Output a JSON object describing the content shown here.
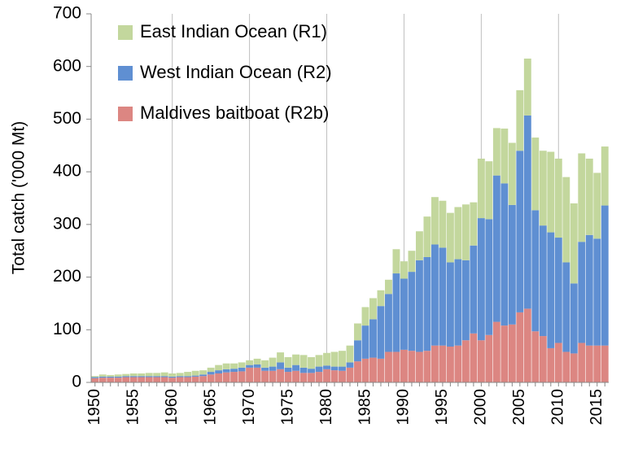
{
  "chart_data": {
    "type": "bar",
    "stacked": true,
    "ylabel": "Total catch ('000 Mt)",
    "categories": [
      "1950",
      null,
      null,
      null,
      null,
      "1955",
      null,
      null,
      null,
      null,
      "1960",
      null,
      null,
      null,
      null,
      "1965",
      null,
      null,
      null,
      null,
      "1970",
      null,
      null,
      null,
      null,
      "1975",
      null,
      null,
      null,
      null,
      "1980",
      null,
      null,
      null,
      null,
      "1985",
      null,
      null,
      null,
      null,
      "1990",
      null,
      null,
      null,
      null,
      "1995",
      null,
      null,
      null,
      null,
      "2000",
      null,
      null,
      null,
      null,
      "2005",
      null,
      null,
      null,
      null,
      "2010",
      null,
      null,
      null,
      null,
      "2015",
      null
    ],
    "series": [
      {
        "name": "Maldives baitboat (R2b)",
        "color": "#dc8682",
        "values": [
          8,
          9,
          9,
          9,
          10,
          10,
          10,
          10,
          10,
          10,
          9,
          10,
          10,
          11,
          12,
          15,
          17,
          19,
          20,
          21,
          28,
          28,
          22,
          22,
          25,
          20,
          22,
          18,
          18,
          20,
          25,
          23,
          22,
          28,
          40,
          45,
          47,
          45,
          58,
          58,
          62,
          60,
          58,
          60,
          70,
          70,
          68,
          70,
          80,
          93,
          80,
          90,
          115,
          108,
          110,
          133,
          140,
          97,
          88,
          65,
          75,
          58,
          55,
          75,
          70,
          70,
          70
        ]
      },
      {
        "name": "West Indian Ocean (R2)",
        "color": "#5f8fd2",
        "values": [
          2,
          2,
          2,
          2,
          2,
          2,
          2,
          2,
          2,
          2,
          2,
          2,
          2,
          2,
          3,
          5,
          6,
          6,
          6,
          7,
          5,
          6,
          6,
          8,
          13,
          8,
          11,
          10,
          8,
          10,
          7,
          7,
          8,
          10,
          40,
          63,
          73,
          100,
          110,
          149,
          135,
          150,
          174,
          178,
          192,
          186,
          160,
          164,
          152,
          167,
          232,
          220,
          278,
          270,
          227,
          307,
          367,
          230,
          210,
          220,
          200,
          170,
          133,
          192,
          210,
          203,
          266
        ]
      },
      {
        "name": "East Indian Ocean (R1)",
        "color": "#c3d79d",
        "values": [
          2,
          4,
          3,
          4,
          4,
          5,
          5,
          6,
          6,
          7,
          6,
          6,
          8,
          9,
          8,
          8,
          10,
          11,
          10,
          10,
          9,
          11,
          14,
          17,
          19,
          20,
          20,
          24,
          22,
          22,
          24,
          28,
          30,
          32,
          32,
          35,
          40,
          30,
          27,
          46,
          33,
          40,
          55,
          77,
          90,
          89,
          94,
          99,
          106,
          82,
          113,
          110,
          90,
          104,
          118,
          115,
          108,
          138,
          142,
          153,
          150,
          162,
          152,
          168,
          145,
          125,
          112
        ]
      }
    ],
    "ylim": [
      0,
      700
    ],
    "yticks": [
      0,
      100,
      200,
      300,
      400,
      500,
      600,
      700
    ],
    "grid": "x",
    "legend": "upper left"
  }
}
